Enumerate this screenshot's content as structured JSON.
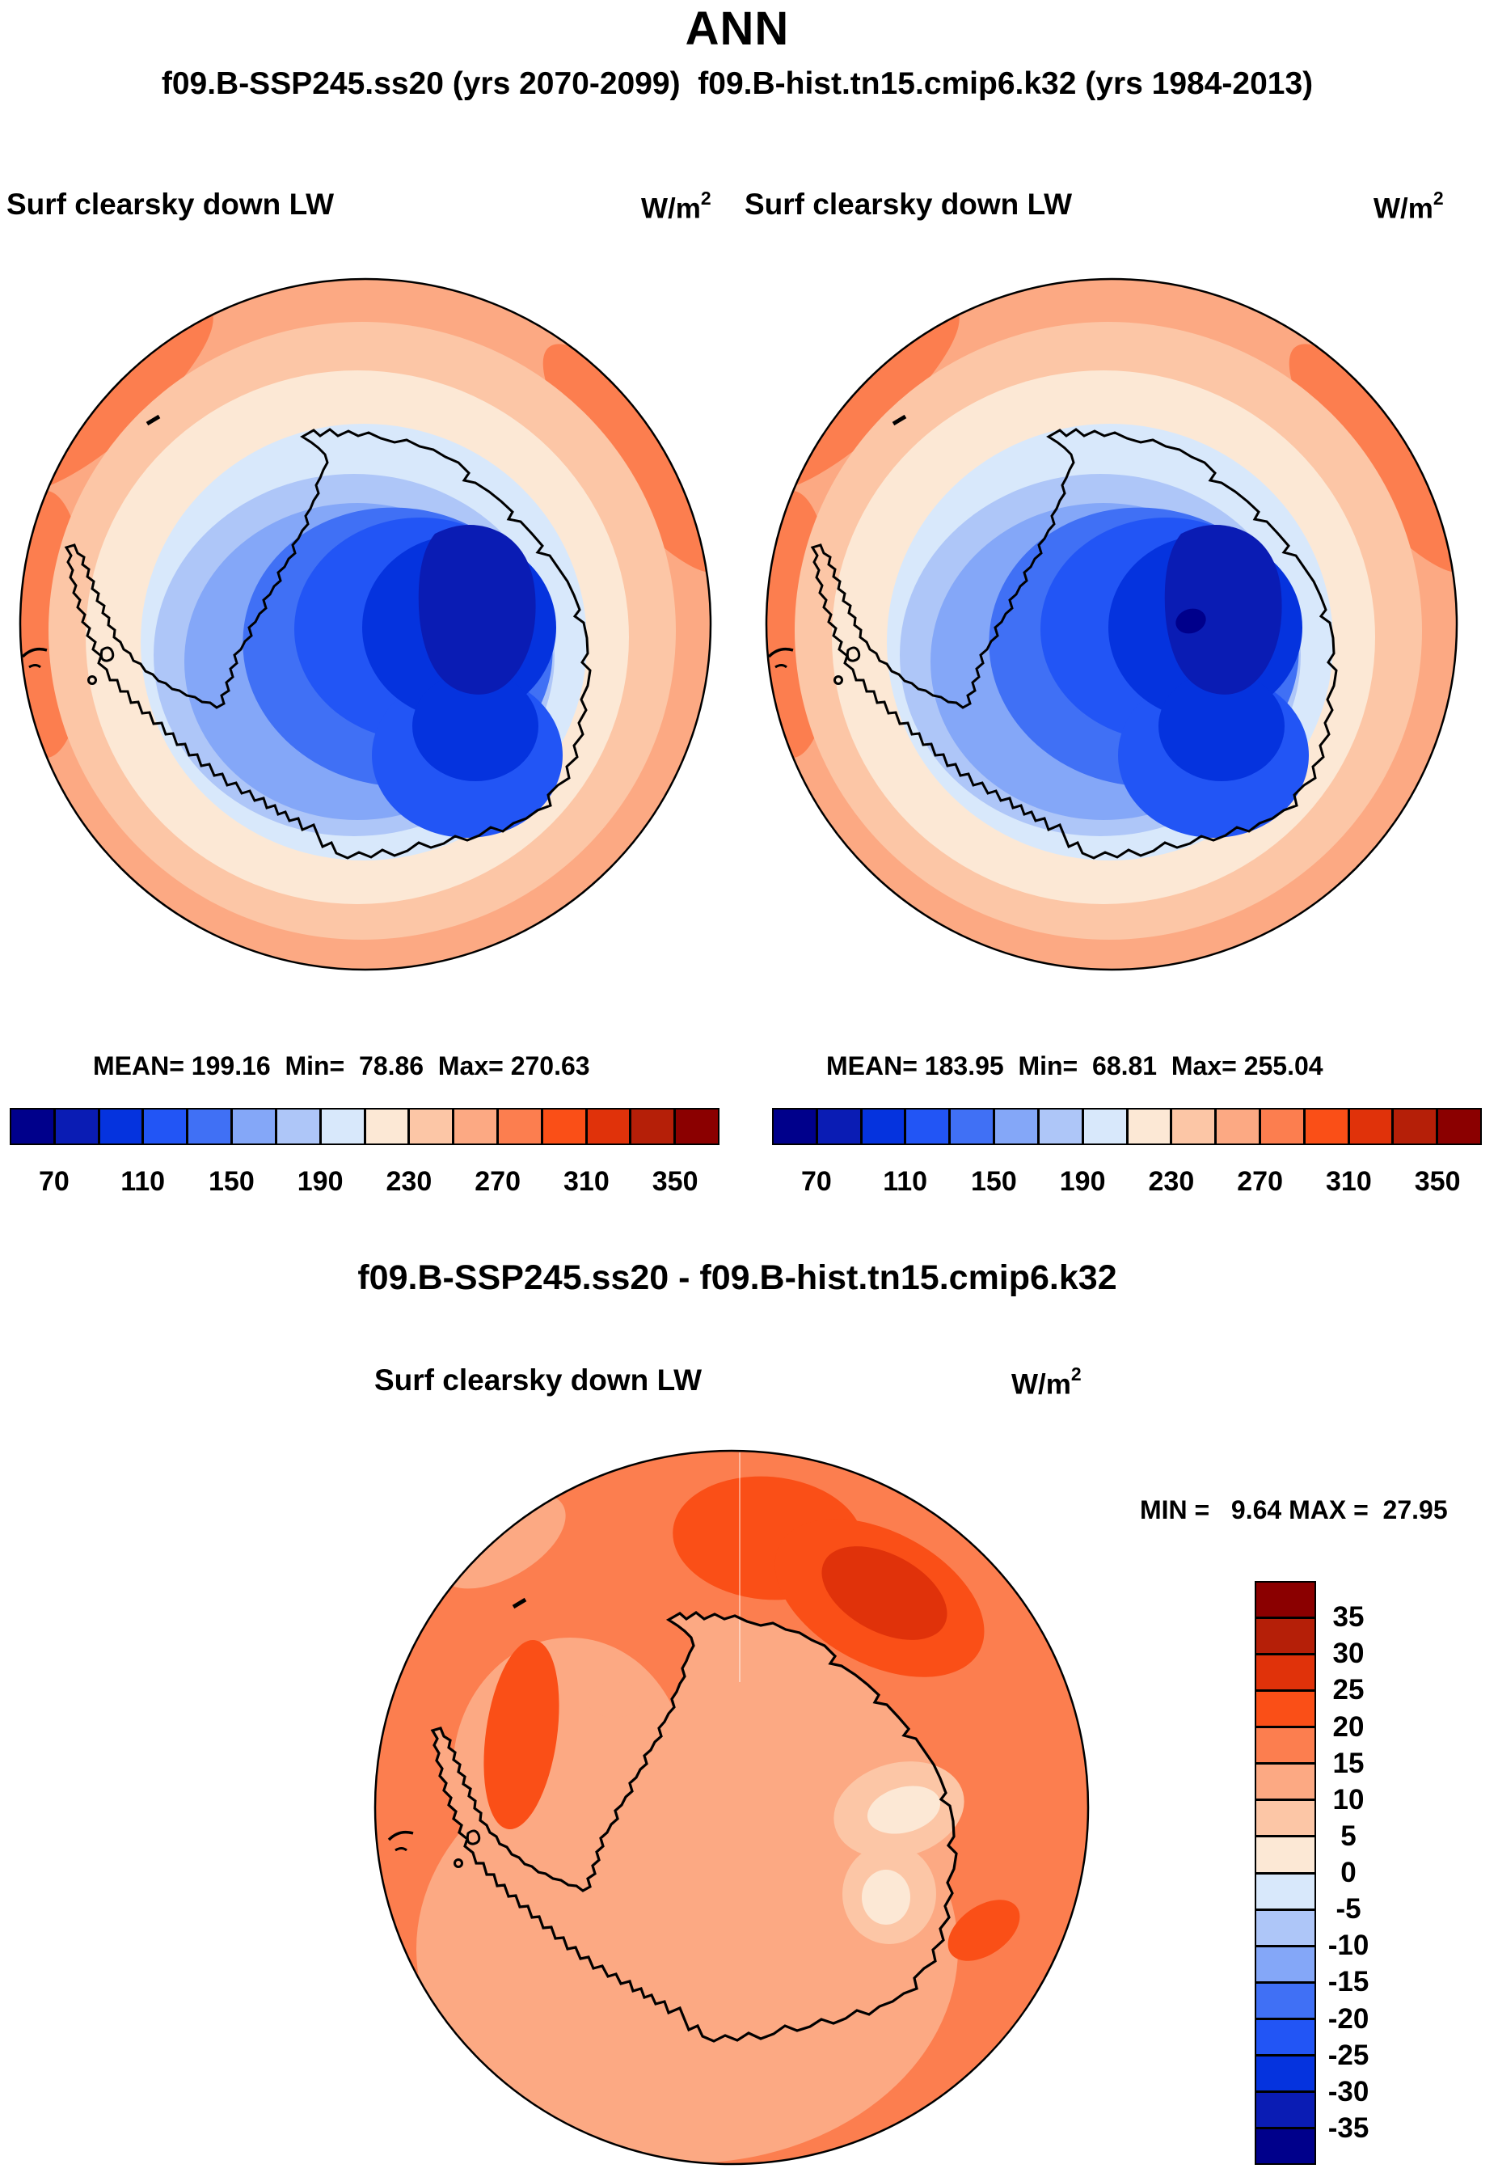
{
  "page": {
    "season_title": "ANN",
    "subtitle": "f09.B-SSP245.ss20 (yrs 2070-2099)  f09.B-hist.tn15.cmip6.k32 (yrs 1984-2013)"
  },
  "colors": {
    "palette_blue_to_red": [
      "#00008B",
      "#0A1CB4",
      "#0533DE",
      "#2255F5",
      "#4070F5",
      "#84A7F8",
      "#AEC6F8",
      "#D8E8FB",
      "#FCE8D5",
      "#FCC6A6",
      "#FCA983",
      "#FC7E4F",
      "#FA4F17",
      "#E0320A",
      "#B51F08",
      "#8B0000"
    ],
    "coastline": "#000000"
  },
  "panels": {
    "left": {
      "field_label": "Surf clearsky down LW",
      "units_base": "W/m",
      "units_exp": "2",
      "stats_line": "MEAN= 199.16  Min=  78.86  Max= 270.63"
    },
    "right": {
      "field_label": "Surf clearsky down LW",
      "units_base": "W/m",
      "units_exp": "2",
      "stats_line": "MEAN= 183.95  Min=  68.81  Max= 255.04"
    }
  },
  "colorbar_top": {
    "cells": 16,
    "ticks": [
      "70",
      "110",
      "150",
      "190",
      "230",
      "270",
      "310",
      "350"
    ]
  },
  "diff": {
    "title": "f09.B-SSP245.ss20 - f09.B-hist.tn15.cmip6.k32",
    "field_label": "Surf clearsky down LW",
    "units_base": "W/m",
    "units_exp": "2",
    "minmax_line": "MIN =   9.64 MAX =  27.95",
    "vticks": [
      "35",
      "30",
      "25",
      "20",
      "15",
      "10",
      "5",
      "0",
      "-5",
      "-10",
      "-15",
      "-20",
      "-25",
      "-30",
      "-35"
    ]
  },
  "chart_data": [
    {
      "type": "heatmap",
      "panel": "top-left",
      "run": "f09.B-SSP245.ss20",
      "years": "2070-2099",
      "season": "ANN",
      "field": "Surf clearsky down LW",
      "units": "W/m2",
      "projection": "south polar stereographic (Antarctica)",
      "stats": {
        "mean": 199.16,
        "min": 78.86,
        "max": 270.63
      },
      "levels": [
        50,
        70,
        90,
        110,
        130,
        150,
        170,
        190,
        210,
        230,
        250,
        270,
        290,
        310,
        330,
        350,
        370
      ],
      "colorbar_ticks": [
        70,
        110,
        150,
        190,
        230,
        270,
        310,
        350
      ],
      "legend_position": "bottom",
      "palette": "blue-to-red, 16 classes"
    },
    {
      "type": "heatmap",
      "panel": "top-right",
      "run": "f09.B-hist.tn15.cmip6.k32",
      "years": "1984-2013",
      "season": "ANN",
      "field": "Surf clearsky down LW",
      "units": "W/m2",
      "projection": "south polar stereographic (Antarctica)",
      "stats": {
        "mean": 183.95,
        "min": 68.81,
        "max": 255.04
      },
      "levels": [
        50,
        70,
        90,
        110,
        130,
        150,
        170,
        190,
        210,
        230,
        250,
        270,
        290,
        310,
        330,
        350,
        370
      ],
      "colorbar_ticks": [
        70,
        110,
        150,
        190,
        230,
        270,
        310,
        350
      ],
      "legend_position": "bottom",
      "palette": "blue-to-red, 16 classes"
    },
    {
      "type": "heatmap",
      "panel": "bottom-difference",
      "run": "f09.B-SSP245.ss20 - f09.B-hist.tn15.cmip6.k32",
      "season": "ANN",
      "field": "Surf clearsky down LW",
      "units": "W/m2",
      "projection": "south polar stereographic (Antarctica)",
      "stats": {
        "min": 9.64,
        "max": 27.95
      },
      "levels": [
        -40,
        -35,
        -30,
        -25,
        -20,
        -15,
        -10,
        -5,
        0,
        5,
        10,
        15,
        20,
        25,
        30,
        35,
        40
      ],
      "colorbar_ticks": [
        35,
        30,
        25,
        20,
        15,
        10,
        5,
        0,
        -5,
        -10,
        -15,
        -20,
        -25,
        -30,
        -35
      ],
      "legend_position": "right",
      "palette": "blue-to-red, 16 classes (red = positive)"
    }
  ]
}
